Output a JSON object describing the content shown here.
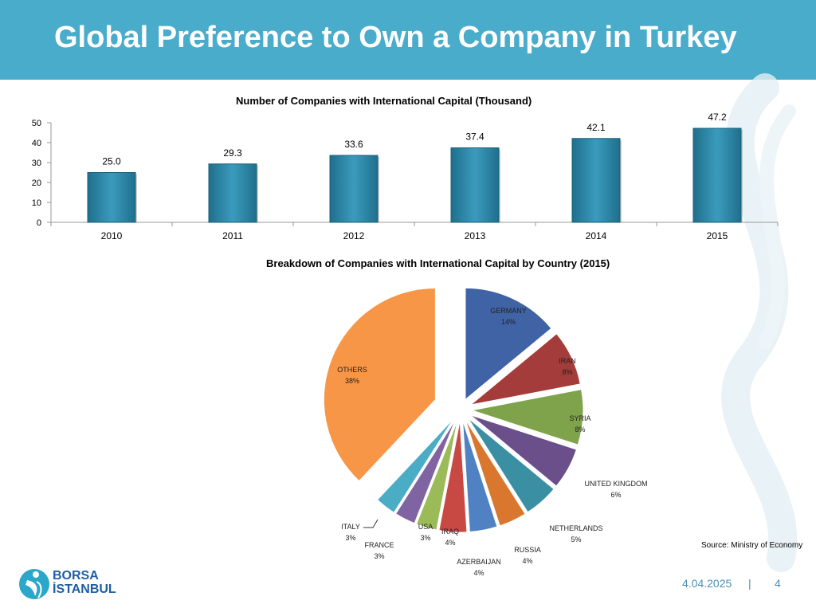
{
  "slide": {
    "title": "Global Preference to Own a Company in Turkey",
    "source": "Source: Ministry of Economy",
    "date": "4.04.2025",
    "separator": "|",
    "page_number": "4",
    "logo": {
      "line1": "BORSA",
      "line2": "İSTANBUL"
    }
  },
  "colors": {
    "header": "#4aaccb",
    "bar": "#2f8bab",
    "germany": "#3f63a4",
    "iran": "#a33c3a",
    "syria": "#7fa34a",
    "united_kingdom": "#6a4f8a",
    "netherlands": "#3a8fa3",
    "russia": "#d9772e",
    "azerbaijan": "#4f81c3",
    "iraq": "#c84844",
    "usa": "#9bbb59",
    "france": "#8064a2",
    "italy": "#4bacc6",
    "others": "#f79646"
  },
  "chart_data": [
    {
      "type": "bar",
      "title": "Number of Companies with International Capital (Thousand)",
      "categories": [
        "2010",
        "2011",
        "2012",
        "2013",
        "2014",
        "2015"
      ],
      "values": [
        25.0,
        29.3,
        33.6,
        37.4,
        42.1,
        47.2
      ],
      "value_labels": [
        "25.0",
        "29.3",
        "33.6",
        "37.4",
        "42.1",
        "47.2"
      ],
      "y_ticks": [
        "0",
        "10",
        "20",
        "30",
        "40",
        "50"
      ],
      "ylim": [
        0,
        50
      ],
      "grid": false,
      "legend": false
    },
    {
      "type": "pie",
      "title": "Breakdown of Companies with International Capital by Country (2015)",
      "slices": [
        {
          "key": "germany",
          "label": "GERMANY",
          "pct": "14%",
          "value": 14
        },
        {
          "key": "iran",
          "label": "IRAN",
          "pct": "8%",
          "value": 8
        },
        {
          "key": "syria",
          "label": "SYRIA",
          "pct": "8%",
          "value": 8
        },
        {
          "key": "united_kingdom",
          "label": "UNITED KINGDOM",
          "pct": "6%",
          "value": 6
        },
        {
          "key": "netherlands",
          "label": "NETHERLANDS",
          "pct": "5%",
          "value": 5
        },
        {
          "key": "russia",
          "label": "RUSSIA",
          "pct": "4%",
          "value": 4
        },
        {
          "key": "azerbaijan",
          "label": "AZERBAIJAN",
          "pct": "4%",
          "value": 4
        },
        {
          "key": "iraq",
          "label": "IRAQ",
          "pct": "4%",
          "value": 4
        },
        {
          "key": "usa",
          "label": "USA",
          "pct": "3%",
          "value": 3
        },
        {
          "key": "france",
          "label": "FRANCE",
          "pct": "3%",
          "value": 3
        },
        {
          "key": "italy",
          "label": "ITALY",
          "pct": "3%",
          "value": 3
        },
        {
          "key": "others",
          "label": "OTHERS",
          "pct": "38%",
          "value": 38
        }
      ],
      "legend": false
    }
  ]
}
